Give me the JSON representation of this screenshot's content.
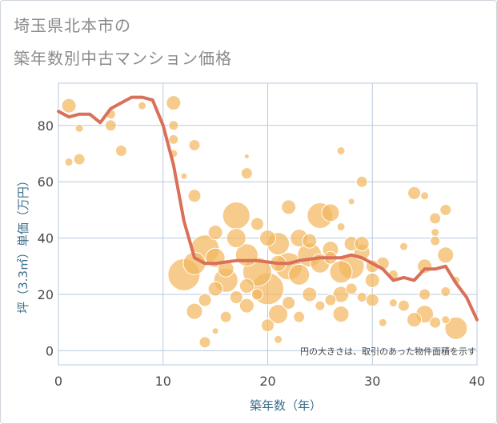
{
  "title_line1": "埼玉県北本市の",
  "title_line2": "築年数別中古マンション価格",
  "note": "円の大きさは、取引のあった物件面積を示す",
  "colors": {
    "bubble": "#f2b75e",
    "bubble_stroke": "#ffffff",
    "line": "#d9705a",
    "grid": "#b8c9dc",
    "axis_text": "#3f6f8c"
  },
  "chart_data": {
    "type": "scatter",
    "xlabel": "築年数（年）",
    "ylabel": "坪（3.3㎡）単価（万円）",
    "xlim": [
      0,
      40
    ],
    "ylim": [
      -5,
      95
    ],
    "x_ticks": [
      0,
      10,
      20,
      30,
      40
    ],
    "y_ticks": [
      0,
      20,
      40,
      60,
      80
    ],
    "grid": true,
    "trend_line": {
      "x": [
        0,
        1,
        2,
        3,
        4,
        5,
        6,
        7,
        8,
        9,
        10,
        11,
        12,
        13,
        14,
        15,
        16,
        17,
        18,
        19,
        20,
        21,
        22,
        23,
        24,
        25,
        26,
        27,
        28,
        29,
        30,
        31,
        32,
        33,
        34,
        35,
        36,
        37,
        38,
        39,
        40
      ],
      "y": [
        85,
        83,
        84,
        84,
        81,
        86,
        88,
        90,
        90,
        89,
        80,
        66,
        46,
        33,
        31,
        31,
        31.5,
        32,
        32,
        32,
        31.5,
        31,
        31,
        32,
        32.5,
        33,
        33,
        33,
        34,
        33,
        31,
        29,
        25,
        26,
        25,
        29,
        29,
        30,
        24,
        19,
        11
      ]
    },
    "points": [
      {
        "x": 1,
        "y": 87,
        "s": 9
      },
      {
        "x": 1,
        "y": 67,
        "s": 5
      },
      {
        "x": 2,
        "y": 68,
        "s": 7
      },
      {
        "x": 2,
        "y": 79,
        "s": 5
      },
      {
        "x": 5,
        "y": 80,
        "s": 7
      },
      {
        "x": 5,
        "y": 84,
        "s": 6
      },
      {
        "x": 6,
        "y": 71,
        "s": 7
      },
      {
        "x": 8,
        "y": 87,
        "s": 5
      },
      {
        "x": 11,
        "y": 88,
        "s": 9
      },
      {
        "x": 11,
        "y": 80,
        "s": 6
      },
      {
        "x": 11,
        "y": 75,
        "s": 6
      },
      {
        "x": 11,
        "y": 70,
        "s": 5
      },
      {
        "x": 13,
        "y": 73,
        "s": 7
      },
      {
        "x": 13,
        "y": 55,
        "s": 8
      },
      {
        "x": 12,
        "y": 62,
        "s": 4
      },
      {
        "x": 18,
        "y": 63,
        "s": 7
      },
      {
        "x": 18,
        "y": 69,
        "s": 3
      },
      {
        "x": 27,
        "y": 71,
        "s": 5
      },
      {
        "x": 29,
        "y": 60,
        "s": 7
      },
      {
        "x": 34,
        "y": 56,
        "s": 8
      },
      {
        "x": 35,
        "y": 55,
        "s": 5
      },
      {
        "x": 36,
        "y": 47,
        "s": 7
      },
      {
        "x": 37,
        "y": 50,
        "s": 7
      },
      {
        "x": 36,
        "y": 42,
        "s": 5
      },
      {
        "x": 36,
        "y": 39,
        "s": 6
      },
      {
        "x": 37,
        "y": 34,
        "s": 10
      },
      {
        "x": 17,
        "y": 48,
        "s": 17
      },
      {
        "x": 19,
        "y": 45,
        "s": 8
      },
      {
        "x": 22,
        "y": 51,
        "s": 9
      },
      {
        "x": 25,
        "y": 48,
        "s": 16
      },
      {
        "x": 26,
        "y": 49,
        "s": 11
      },
      {
        "x": 28,
        "y": 53,
        "s": 4
      },
      {
        "x": 27,
        "y": 44,
        "s": 5
      },
      {
        "x": 12,
        "y": 27,
        "s": 20
      },
      {
        "x": 13,
        "y": 31,
        "s": 14
      },
      {
        "x": 14,
        "y": 36,
        "s": 18
      },
      {
        "x": 15,
        "y": 33,
        "s": 12
      },
      {
        "x": 16,
        "y": 25,
        "s": 15
      },
      {
        "x": 17,
        "y": 40,
        "s": 12
      },
      {
        "x": 18,
        "y": 34,
        "s": 14
      },
      {
        "x": 19,
        "y": 28,
        "s": 18
      },
      {
        "x": 20,
        "y": 22,
        "s": 20
      },
      {
        "x": 21,
        "y": 38,
        "s": 14
      },
      {
        "x": 22,
        "y": 30,
        "s": 17
      },
      {
        "x": 23,
        "y": 27,
        "s": 13
      },
      {
        "x": 24,
        "y": 34,
        "s": 15
      },
      {
        "x": 25,
        "y": 31,
        "s": 12
      },
      {
        "x": 26,
        "y": 36,
        "s": 10
      },
      {
        "x": 27,
        "y": 28,
        "s": 14
      },
      {
        "x": 28,
        "y": 30,
        "s": 16
      },
      {
        "x": 29,
        "y": 35,
        "s": 10
      },
      {
        "x": 30,
        "y": 25,
        "s": 9
      },
      {
        "x": 31,
        "y": 31,
        "s": 8
      },
      {
        "x": 13,
        "y": 14,
        "s": 10
      },
      {
        "x": 14,
        "y": 18,
        "s": 8
      },
      {
        "x": 15,
        "y": 22,
        "s": 9
      },
      {
        "x": 16,
        "y": 12,
        "s": 7
      },
      {
        "x": 17,
        "y": 19,
        "s": 8
      },
      {
        "x": 18,
        "y": 16,
        "s": 9
      },
      {
        "x": 19,
        "y": 20,
        "s": 7
      },
      {
        "x": 20,
        "y": 9,
        "s": 8
      },
      {
        "x": 21,
        "y": 13,
        "s": 12
      },
      {
        "x": 22,
        "y": 17,
        "s": 8
      },
      {
        "x": 23,
        "y": 12,
        "s": 7
      },
      {
        "x": 24,
        "y": 20,
        "s": 9
      },
      {
        "x": 25,
        "y": 16,
        "s": 6
      },
      {
        "x": 26,
        "y": 18,
        "s": 7
      },
      {
        "x": 27,
        "y": 13,
        "s": 10
      },
      {
        "x": 27,
        "y": 20,
        "s": 10
      },
      {
        "x": 28,
        "y": 22,
        "s": 7
      },
      {
        "x": 29,
        "y": 19,
        "s": 6
      },
      {
        "x": 30,
        "y": 18,
        "s": 8
      },
      {
        "x": 31,
        "y": 10,
        "s": 5
      },
      {
        "x": 32,
        "y": 17,
        "s": 5
      },
      {
        "x": 33,
        "y": 16,
        "s": 7
      },
      {
        "x": 34,
        "y": 11,
        "s": 9
      },
      {
        "x": 35,
        "y": 13,
        "s": 11
      },
      {
        "x": 35,
        "y": 20,
        "s": 7
      },
      {
        "x": 36,
        "y": 10,
        "s": 7
      },
      {
        "x": 37,
        "y": 21,
        "s": 6
      },
      {
        "x": 37,
        "y": 11,
        "s": 5
      },
      {
        "x": 38,
        "y": 25,
        "s": 5
      },
      {
        "x": 38,
        "y": 8,
        "s": 14
      },
      {
        "x": 35,
        "y": 30,
        "s": 9
      },
      {
        "x": 14,
        "y": 3,
        "s": 7
      },
      {
        "x": 21,
        "y": 4,
        "s": 5
      },
      {
        "x": 15,
        "y": 7,
        "s": 4
      },
      {
        "x": 33,
        "y": 37,
        "s": 5
      },
      {
        "x": 15,
        "y": 42,
        "s": 9
      },
      {
        "x": 20,
        "y": 40,
        "s": 10
      },
      {
        "x": 23,
        "y": 40,
        "s": 11
      },
      {
        "x": 24,
        "y": 39,
        "s": 9
      },
      {
        "x": 28,
        "y": 38,
        "s": 9
      },
      {
        "x": 29,
        "y": 38,
        "s": 9
      },
      {
        "x": 30,
        "y": 30,
        "s": 8
      },
      {
        "x": 16,
        "y": 29,
        "s": 10
      },
      {
        "x": 18,
        "y": 23,
        "s": 9
      },
      {
        "x": 21,
        "y": 31,
        "s": 10
      },
      {
        "x": 26,
        "y": 33,
        "s": 8
      },
      {
        "x": 32,
        "y": 27,
        "s": 6
      }
    ]
  }
}
